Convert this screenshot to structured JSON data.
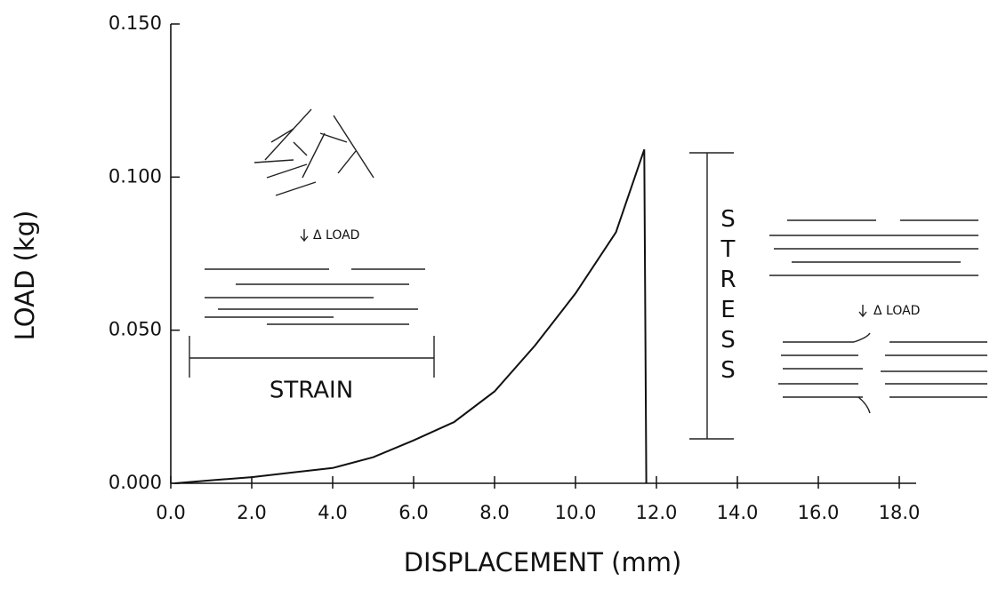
{
  "chart_data": {
    "type": "line",
    "x_label": "DISPLACEMENT (mm)",
    "y_label": "LOAD (kg)",
    "x": [
      0.1,
      1,
      2,
      3,
      4,
      5,
      6,
      7,
      8,
      9,
      10,
      11,
      11.7,
      11.75
    ],
    "values": [
      0,
      0.001,
      0.002,
      0.0035,
      0.005,
      0.0085,
      0.014,
      0.02,
      0.03,
      0.045,
      0.062,
      0.082,
      0.109,
      0
    ],
    "color": "#111111",
    "xlim": [
      0,
      18
    ],
    "xticks": [
      {
        "value": 0,
        "label": "0.0"
      },
      {
        "value": 2,
        "label": "2.0"
      },
      {
        "value": 4,
        "label": "4.0"
      },
      {
        "value": 6,
        "label": "6.0"
      },
      {
        "value": 8,
        "label": "8.0"
      },
      {
        "value": 10,
        "label": "10.0"
      },
      {
        "value": 12,
        "label": "12.0"
      },
      {
        "value": 14,
        "label": "14.0"
      },
      {
        "value": 16,
        "label": "16.0"
      },
      {
        "value": 18,
        "label": "18.0"
      }
    ],
    "ylim": [
      0,
      0.15
    ],
    "yticks": [
      {
        "value": 0,
        "label": "0.000"
      },
      {
        "value": 0.05,
        "label": "0.050"
      },
      {
        "value": 0.1,
        "label": "0.100"
      },
      {
        "value": 0.15,
        "label": "0.150"
      }
    ],
    "annotations": {
      "strain": "STRAIN",
      "stress": "STRESS",
      "load_left": "Δ LOAD",
      "load_right": "Δ LOAD"
    }
  }
}
